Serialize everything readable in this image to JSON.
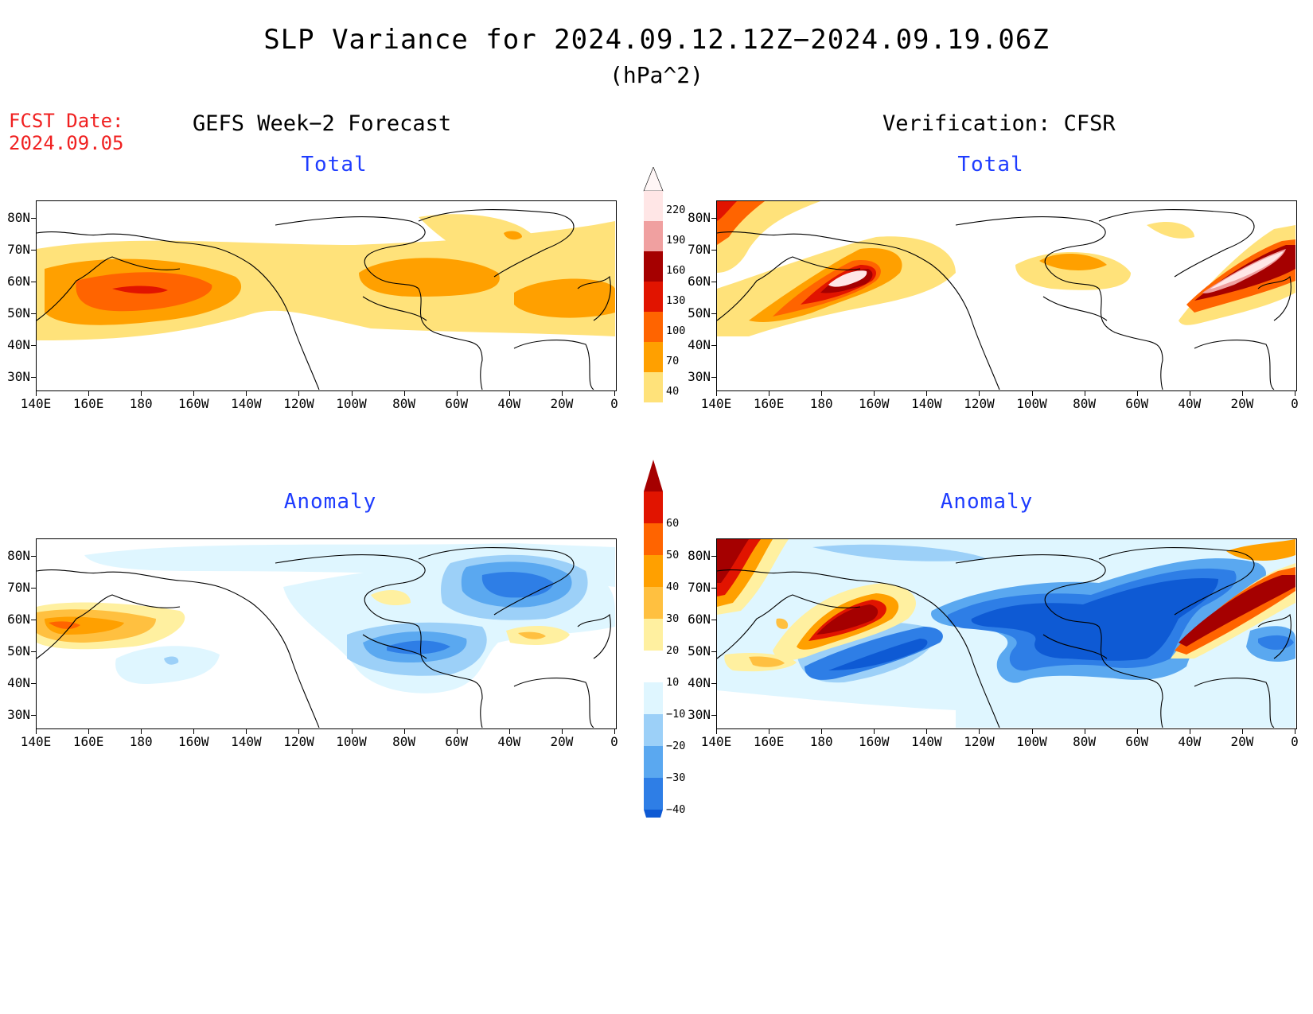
{
  "title": "SLP Variance for 2024.09.12.12Z−2024.09.19.06Z",
  "units": "(hPa^2)",
  "fcst_date": {
    "label": "FCST Date:",
    "value": "2024.09.05"
  },
  "left_heading": "GEFS Week−2 Forecast",
  "right_heading": "Verification: CFSR",
  "panels": {
    "total_label": "Total",
    "anomaly_label": "Anomaly"
  },
  "lat_ticks": [
    "80N",
    "70N",
    "60N",
    "50N",
    "40N",
    "30N"
  ],
  "lon_ticks": [
    "140E",
    "160E",
    "180",
    "160W",
    "140W",
    "120W",
    "100W",
    "80W",
    "60W",
    "40W",
    "20W",
    "0"
  ],
  "colorbar_total": {
    "levels": [
      "40",
      "70",
      "100",
      "130",
      "160",
      "190",
      "220"
    ],
    "colors": [
      "#ffe27a",
      "#ffa000",
      "#ff6400",
      "#e11400",
      "#a50000",
      "#f0a0a0",
      "#ffe6e6"
    ]
  },
  "colorbar_anomaly": {
    "levels": [
      "−40",
      "−30",
      "−20",
      "−10",
      "10",
      "20",
      "30",
      "40",
      "50",
      "60"
    ],
    "colors": [
      "#0e5ad4",
      "#2e7ee6",
      "#5aa8f0",
      "#9cd0f8",
      "#dff6ff",
      "#ffffff",
      "#fff0a0",
      "#ffc040",
      "#ffa000",
      "#ff6400",
      "#e11400",
      "#a50000"
    ]
  }
}
